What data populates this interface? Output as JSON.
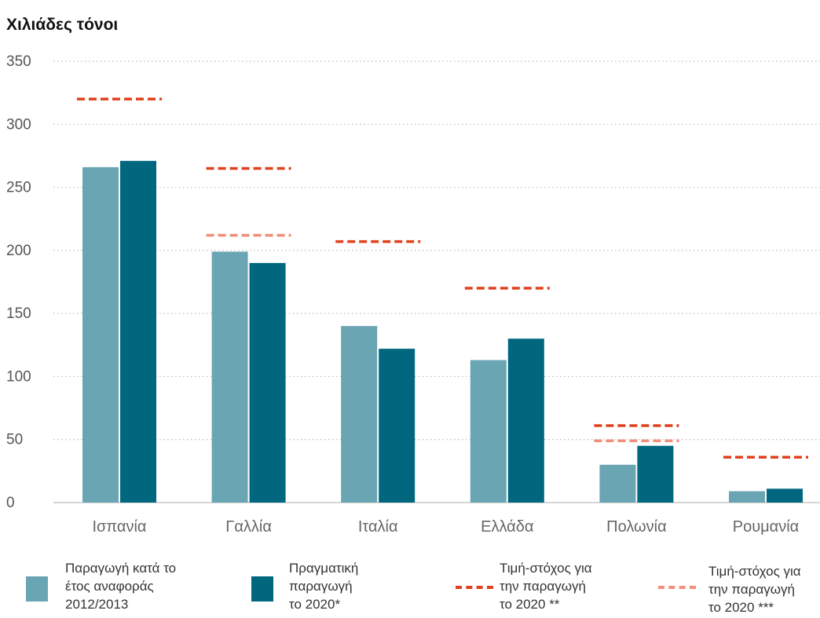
{
  "chart_data": {
    "type": "bar",
    "ylabel": "Χιλιάδες τόνοι",
    "ylim": [
      0,
      350
    ],
    "yticks": [
      0,
      50,
      100,
      150,
      200,
      250,
      300,
      350
    ],
    "categories": [
      "Ισπανία",
      "Γαλλία",
      "Ιταλία",
      "Ελλάδα",
      "Πολωνία",
      "Ρουμανία"
    ],
    "series": [
      {
        "name": "Παραγωγή κατά το\nέτος αναφοράς\n2012/2013",
        "values": [
          266,
          199,
          140,
          113,
          30,
          9
        ],
        "color": "#6aa5b4"
      },
      {
        "name": "Πραγματική\nπαραγωγή\nτο 2020*",
        "values": [
          271,
          190,
          122,
          130,
          45,
          11
        ],
        "color": "#00677f"
      }
    ],
    "targets": [
      {
        "name": "Τιμή-στόχος για\nτην παραγωγή\nτο 2020 **",
        "values": [
          320,
          265,
          207,
          170,
          61,
          36
        ],
        "color": "#e0401c"
      },
      {
        "name": "Τιμή-στόχος για\nτην παραγωγή\nτο 2020 ***",
        "values": [
          null,
          212,
          null,
          null,
          49,
          null
        ],
        "color": "#f0907a"
      }
    ],
    "grid": true,
    "legend": "bottom"
  }
}
